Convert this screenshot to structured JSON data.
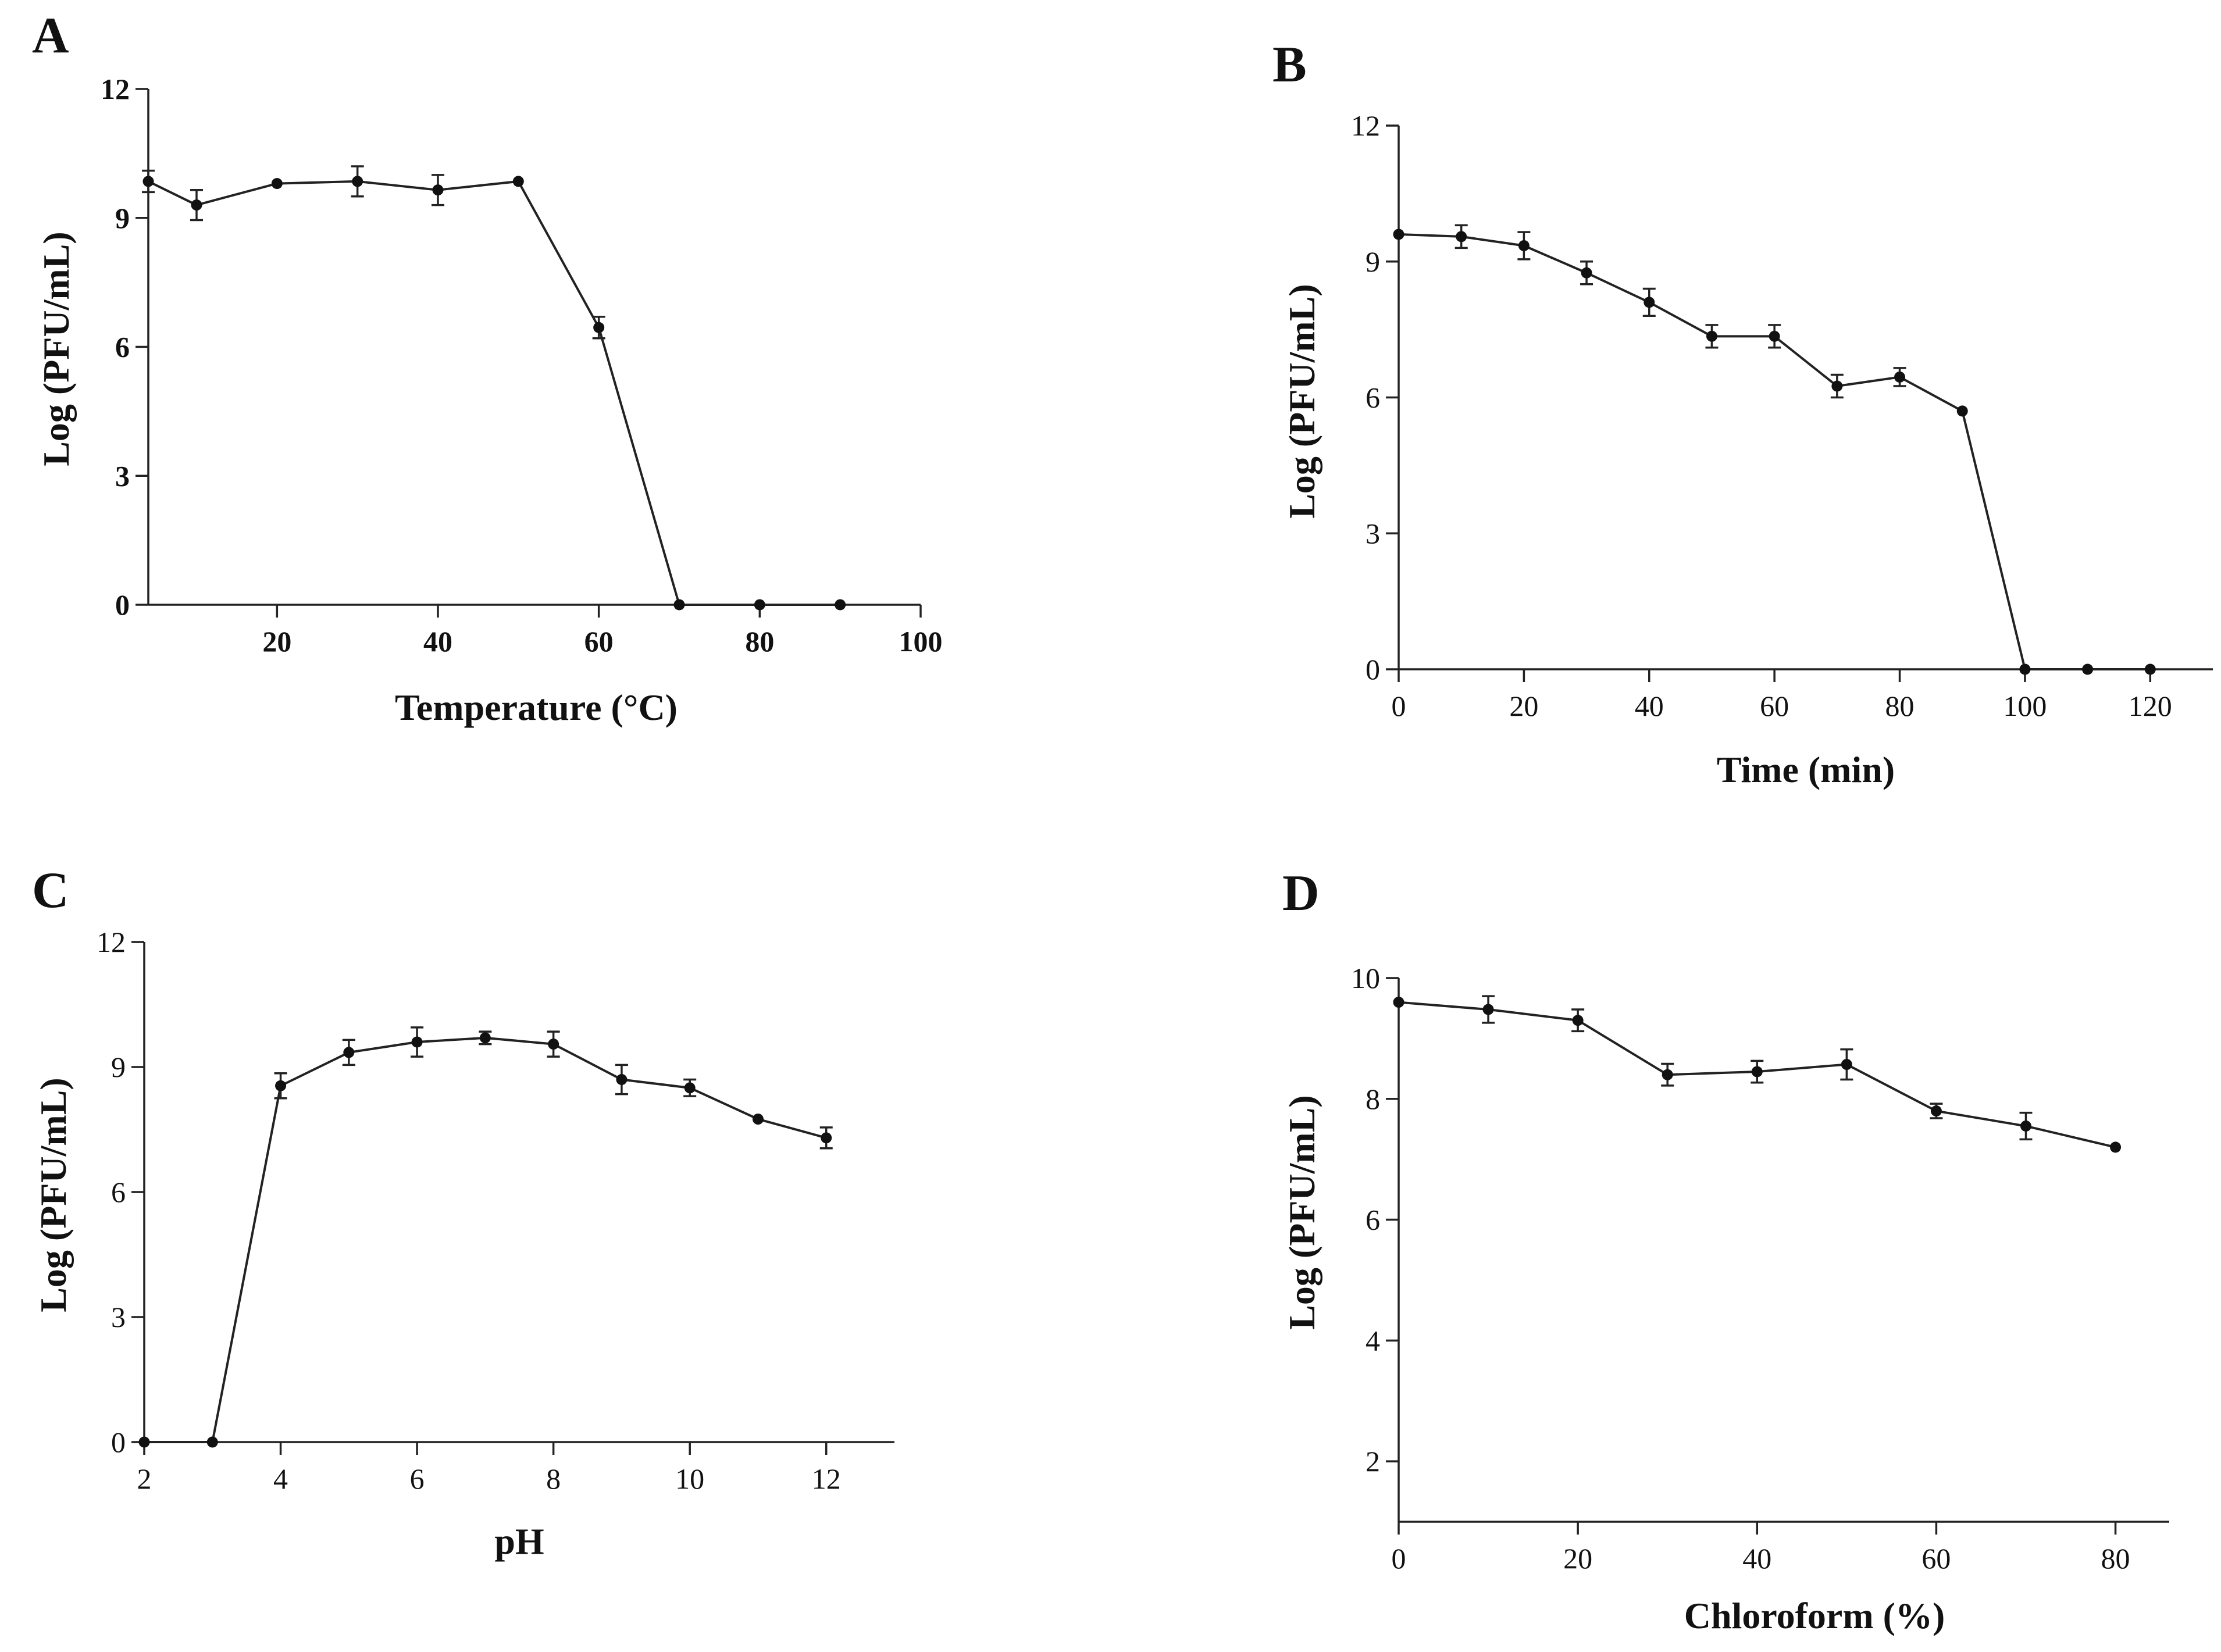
{
  "chart_data": [
    {
      "type": "line",
      "panel": "A",
      "xlabel": "Temperature  (°C)",
      "ylabel": "Log (PFU/mL)",
      "xlim": [
        4,
        100
      ],
      "ylim": [
        0,
        12
      ],
      "x_ticks": [
        "20",
        "40",
        "60",
        "80",
        "100"
      ],
      "y_ticks": [
        "0",
        "3",
        "6",
        "9",
        "12"
      ],
      "grid": false,
      "bold_ticks": true,
      "series": [
        {
          "x": [
            4,
            10,
            20,
            30,
            40,
            50,
            60,
            70,
            80,
            90
          ],
          "y": [
            9.85,
            9.3,
            9.8,
            9.85,
            9.65,
            9.85,
            6.45,
            0,
            0,
            0
          ],
          "err": [
            0.25,
            0.35,
            0,
            0.35,
            0.35,
            0,
            0.25,
            0,
            0,
            0
          ]
        }
      ]
    },
    {
      "type": "line",
      "panel": "B",
      "xlabel": "Time (min)",
      "ylabel": "Log  (PFU/mL)",
      "xlim": [
        0,
        130
      ],
      "ylim": [
        0,
        12
      ],
      "x_ticks": [
        "0",
        "20",
        "40",
        "60",
        "80",
        "100",
        "120"
      ],
      "y_ticks": [
        "0",
        "3",
        "6",
        "9",
        "12"
      ],
      "grid": false,
      "bold_ticks": false,
      "series": [
        {
          "x": [
            0,
            10,
            20,
            30,
            40,
            50,
            60,
            70,
            80,
            90,
            100,
            110,
            120
          ],
          "y": [
            9.6,
            9.55,
            9.35,
            8.75,
            8.1,
            7.35,
            7.35,
            6.25,
            6.45,
            5.7,
            0,
            0,
            0
          ],
          "err": [
            0,
            0.25,
            0.3,
            0.25,
            0.3,
            0.25,
            0.25,
            0.25,
            0.2,
            0,
            0,
            0,
            0
          ]
        }
      ]
    },
    {
      "type": "line",
      "panel": "C",
      "xlabel": "pH",
      "ylabel": "Log (PFU/mL)",
      "xlim": [
        2,
        13
      ],
      "ylim": [
        0,
        12
      ],
      "x_ticks": [
        "2",
        "4",
        "6",
        "8",
        "10",
        "12"
      ],
      "y_ticks": [
        "0",
        "3",
        "6",
        "9",
        "12"
      ],
      "grid": false,
      "bold_ticks": false,
      "series": [
        {
          "x": [
            2,
            3,
            4,
            5,
            6,
            7,
            8,
            9,
            10,
            11,
            12
          ],
          "y": [
            0,
            0,
            8.55,
            9.35,
            9.6,
            9.7,
            9.55,
            8.7,
            8.5,
            7.75,
            7.3
          ],
          "err": [
            0,
            0,
            0.3,
            0.3,
            0.35,
            0.15,
            0.3,
            0.35,
            0.2,
            0,
            0.25
          ]
        }
      ]
    },
    {
      "type": "line",
      "panel": "D",
      "xlabel": "Chloroform (%)",
      "ylabel": "Log (PFU/mL)",
      "xlim": [
        0,
        86
      ],
      "ylim": [
        1,
        10
      ],
      "x_ticks": [
        "0",
        "20",
        "40",
        "60",
        "80"
      ],
      "y_ticks": [
        "2",
        "4",
        "6",
        "8",
        "10"
      ],
      "grid": false,
      "bold_ticks": false,
      "series": [
        {
          "x": [
            0,
            10,
            20,
            30,
            40,
            50,
            60,
            70,
            80
          ],
          "y": [
            9.6,
            9.48,
            9.3,
            8.4,
            8.45,
            8.57,
            7.8,
            7.55,
            7.2
          ],
          "err": [
            0,
            0.22,
            0.18,
            0.18,
            0.18,
            0.25,
            0.12,
            0.22,
            0
          ]
        }
      ]
    }
  ]
}
